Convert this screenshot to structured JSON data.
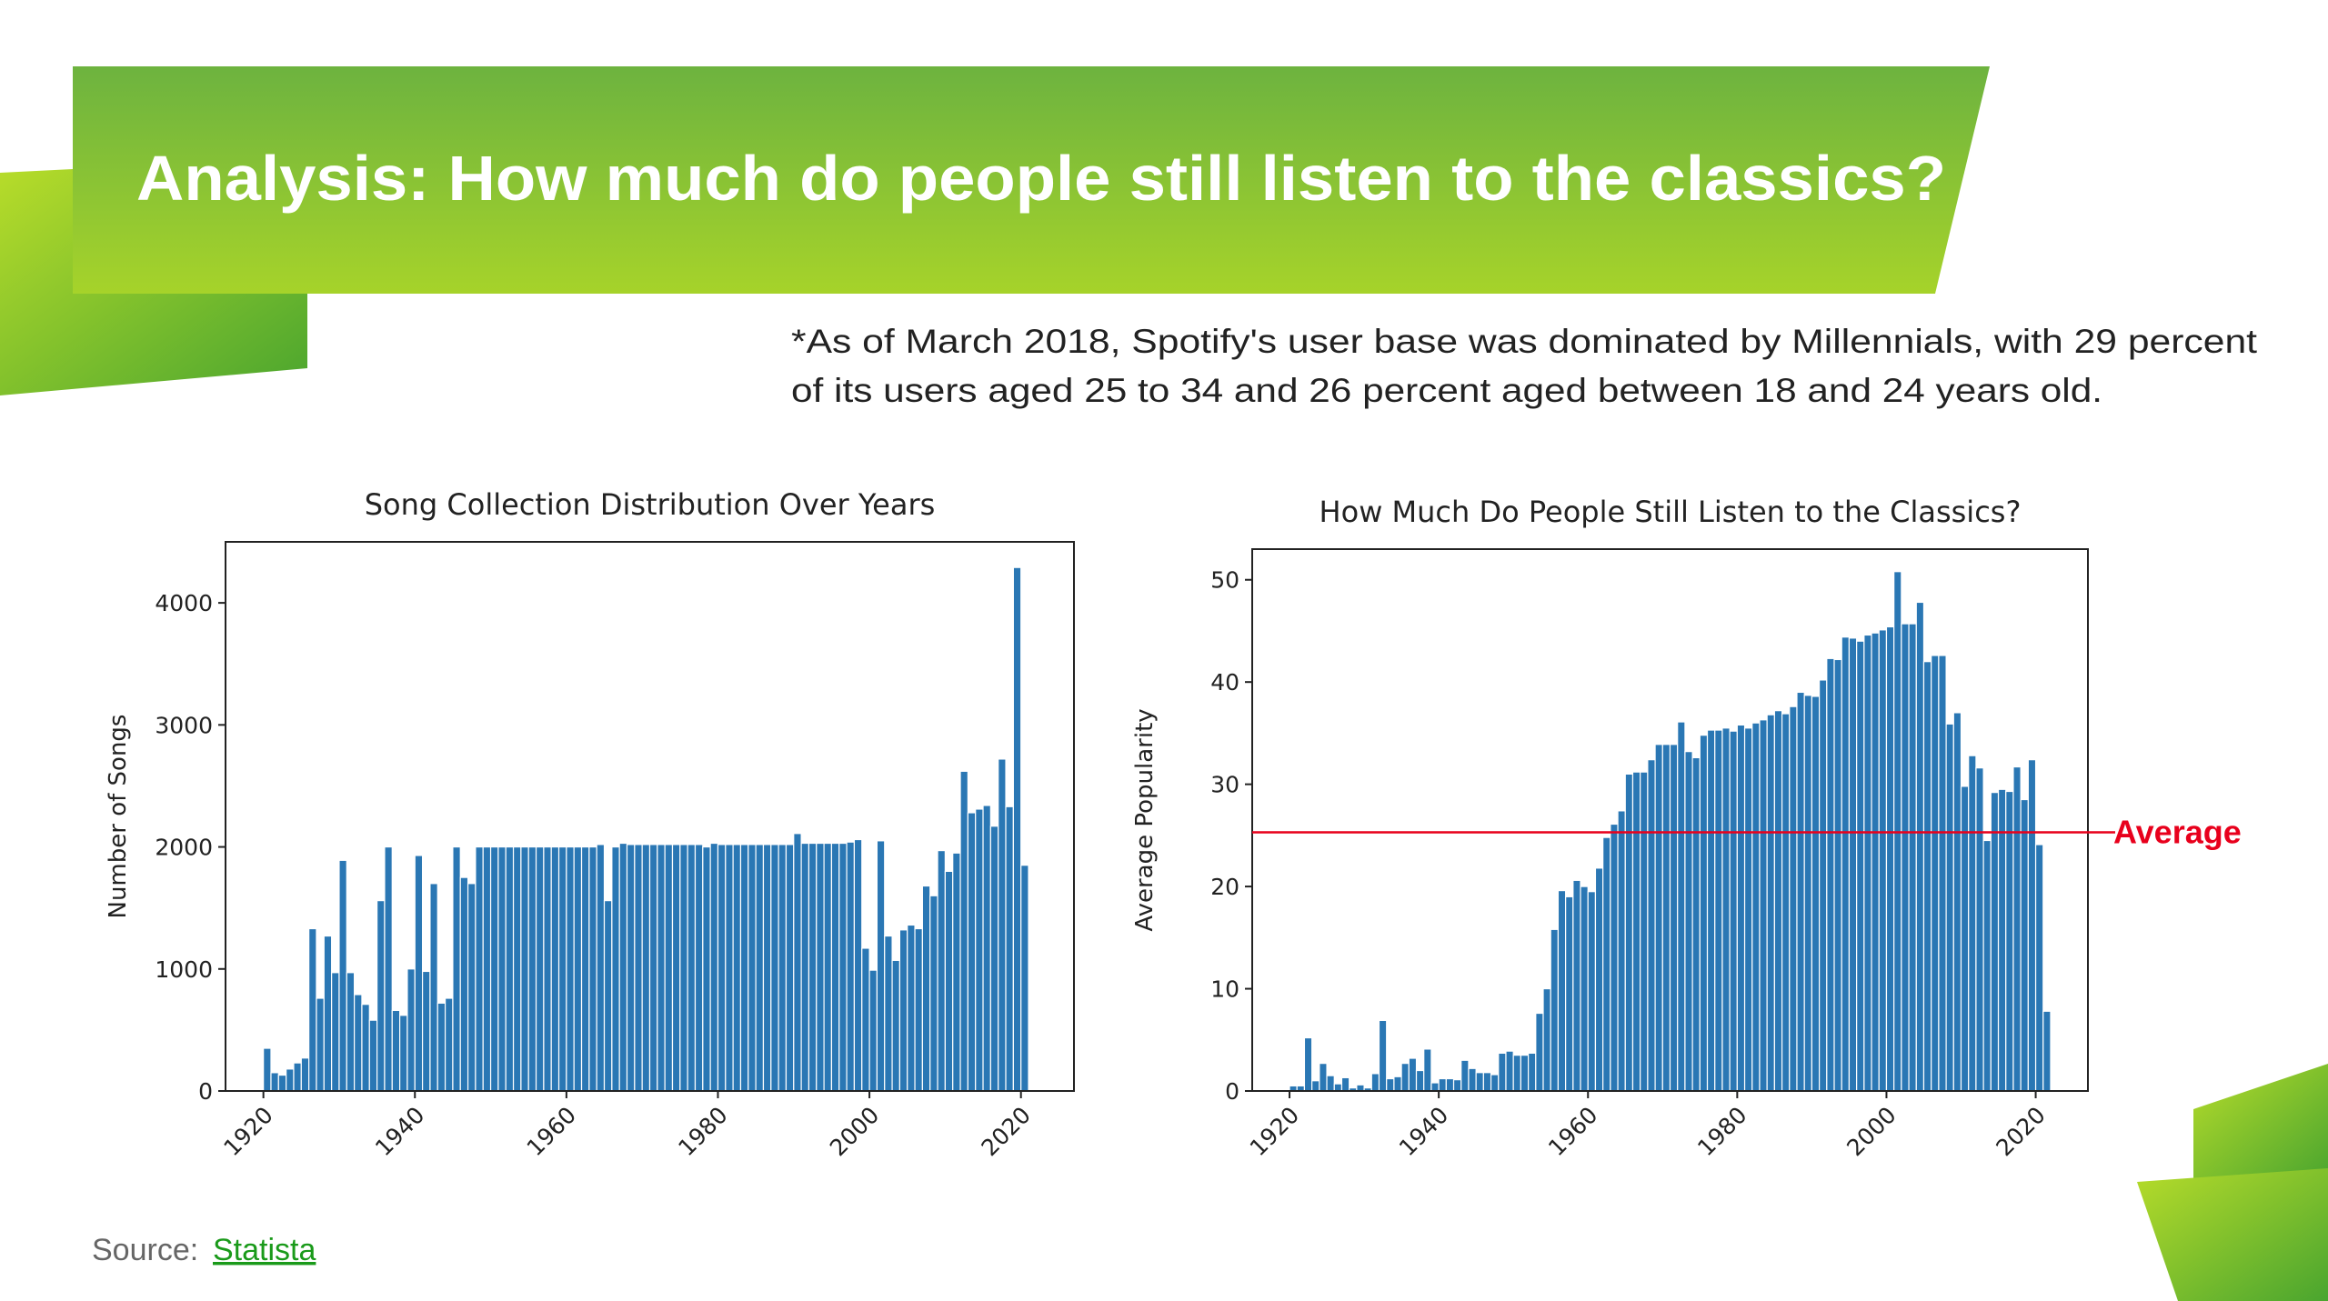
{
  "header": {
    "title": "Analysis: How much do people still listen to the classics?"
  },
  "note": {
    "lines": [
      "*As of March 2018, Spotify's user base was dominated by Millennials, with 29 percent",
      "of its users aged 25 to 34 and 26 percent aged between 18 and 24 years old."
    ]
  },
  "source": {
    "prefix": "Source:",
    "link": "Statista"
  },
  "chart_data": [
    {
      "type": "bar",
      "title": "Song Collection Distribution Over Years",
      "y_label": "Number of Songs",
      "color": "#2a77b4",
      "x": [
        1920,
        1921,
        1922,
        1923,
        1924,
        1925,
        1926,
        1927,
        1928,
        1929,
        1930,
        1931,
        1932,
        1933,
        1934,
        1935,
        1936,
        1937,
        1938,
        1939,
        1940,
        1941,
        1942,
        1943,
        1944,
        1945,
        1946,
        1947,
        1948,
        1949,
        1950,
        1951,
        1952,
        1953,
        1954,
        1955,
        1956,
        1957,
        1958,
        1959,
        1960,
        1961,
        1962,
        1963,
        1964,
        1965,
        1966,
        1967,
        1968,
        1969,
        1970,
        1971,
        1972,
        1973,
        1974,
        1975,
        1976,
        1977,
        1978,
        1979,
        1980,
        1981,
        1982,
        1983,
        1984,
        1985,
        1986,
        1987,
        1988,
        1989,
        1990,
        1991,
        1992,
        1993,
        1994,
        1995,
        1996,
        1997,
        1998,
        1999,
        2000,
        2001,
        2002,
        2003,
        2004,
        2005,
        2006,
        2007,
        2008,
        2009,
        2010,
        2011,
        2012,
        2013,
        2014,
        2015,
        2016,
        2017,
        2018,
        2019,
        2020
      ],
      "values": [
        350,
        150,
        130,
        180,
        230,
        270,
        1330,
        760,
        1270,
        970,
        1890,
        970,
        790,
        710,
        580,
        1560,
        2000,
        660,
        620,
        1000,
        1930,
        980,
        1700,
        720,
        760,
        2000,
        1750,
        1700,
        2000,
        2000,
        2000,
        2000,
        2000,
        2000,
        2000,
        2000,
        2000,
        2000,
        2000,
        2000,
        2000,
        2000,
        2000,
        2000,
        2020,
        1560,
        2000,
        2030,
        2020,
        2020,
        2020,
        2020,
        2020,
        2020,
        2020,
        2020,
        2020,
        2020,
        2000,
        2030,
        2020,
        2020,
        2020,
        2020,
        2020,
        2020,
        2020,
        2020,
        2020,
        2020,
        2110,
        2030,
        2030,
        2030,
        2030,
        2030,
        2030,
        2040,
        2060,
        1170,
        990,
        2050,
        1270,
        1070,
        1320,
        1360,
        1330,
        1680,
        1600,
        1970,
        1800,
        1950,
        2620,
        2280,
        2310,
        2340,
        2170,
        2720,
        2330,
        4290,
        1850
      ],
      "xlim": [
        1915,
        2027
      ],
      "xticks": [
        1920,
        1940,
        1960,
        1980,
        2000,
        2020
      ],
      "ylim": [
        0,
        4500
      ],
      "yticks": [
        0,
        1000,
        2000,
        3000,
        4000
      ]
    },
    {
      "type": "bar",
      "title": "How Much Do People Still Listen to the Classics?",
      "y_label": "Average Popularity",
      "color": "#2a77b4",
      "x": [
        1920,
        1921,
        1922,
        1923,
        1924,
        1925,
        1926,
        1927,
        1928,
        1929,
        1930,
        1931,
        1932,
        1933,
        1934,
        1935,
        1936,
        1937,
        1938,
        1939,
        1940,
        1941,
        1942,
        1943,
        1944,
        1945,
        1946,
        1947,
        1948,
        1949,
        1950,
        1951,
        1952,
        1953,
        1954,
        1955,
        1956,
        1957,
        1958,
        1959,
        1960,
        1961,
        1962,
        1963,
        1964,
        1965,
        1966,
        1967,
        1968,
        1969,
        1970,
        1971,
        1972,
        1973,
        1974,
        1975,
        1976,
        1977,
        1978,
        1979,
        1980,
        1981,
        1982,
        1983,
        1984,
        1985,
        1986,
        1987,
        1988,
        1989,
        1990,
        1991,
        1992,
        1993,
        1994,
        1995,
        1996,
        1997,
        1998,
        1999,
        2000,
        2001,
        2002,
        2003,
        2004,
        2005,
        2006,
        2007,
        2008,
        2009,
        2010,
        2011,
        2012,
        2013,
        2014,
        2015,
        2016,
        2017,
        2018,
        2019,
        2020,
        2021
      ],
      "values": [
        0.5,
        0.5,
        5.2,
        1,
        2.7,
        1.5,
        0.7,
        1.3,
        0.3,
        0.6,
        0.3,
        1.7,
        6.9,
        1.2,
        1.4,
        2.7,
        3.2,
        2,
        4.1,
        0.8,
        1.2,
        1.2,
        1.1,
        3,
        2.2,
        1.8,
        1.8,
        1.6,
        3.7,
        3.9,
        3.5,
        3.5,
        3.7,
        7.6,
        10,
        15.8,
        19.6,
        19,
        20.6,
        20,
        19.5,
        21.8,
        24.8,
        26.1,
        27.4,
        31,
        31.2,
        31.2,
        32.4,
        33.9,
        33.9,
        33.9,
        36.1,
        33.2,
        32.6,
        34.8,
        35.3,
        35.3,
        35.5,
        35.2,
        35.8,
        35.5,
        36,
        36.3,
        36.8,
        37.2,
        36.9,
        37.6,
        39,
        38.7,
        38.6,
        40.2,
        42.3,
        42.2,
        44.4,
        44.3,
        44,
        44.6,
        44.8,
        45.1,
        45.4,
        50.8,
        45.7,
        45.7,
        47.8,
        42,
        42.6,
        42.6,
        35.9,
        37,
        29.8,
        32.8,
        31.6,
        24.5,
        29.2,
        29.5,
        29.3,
        31.7,
        28.5,
        32.4,
        24.1,
        7.8
      ],
      "xlim": [
        1915,
        2027
      ],
      "xticks": [
        1920,
        1940,
        1960,
        1980,
        2000,
        2020
      ],
      "ylim": [
        0,
        53
      ],
      "yticks": [
        0,
        10,
        20,
        30,
        40,
        50
      ],
      "average_line": {
        "value": 25.3,
        "label": "Average",
        "color": "#e8001c"
      }
    }
  ]
}
